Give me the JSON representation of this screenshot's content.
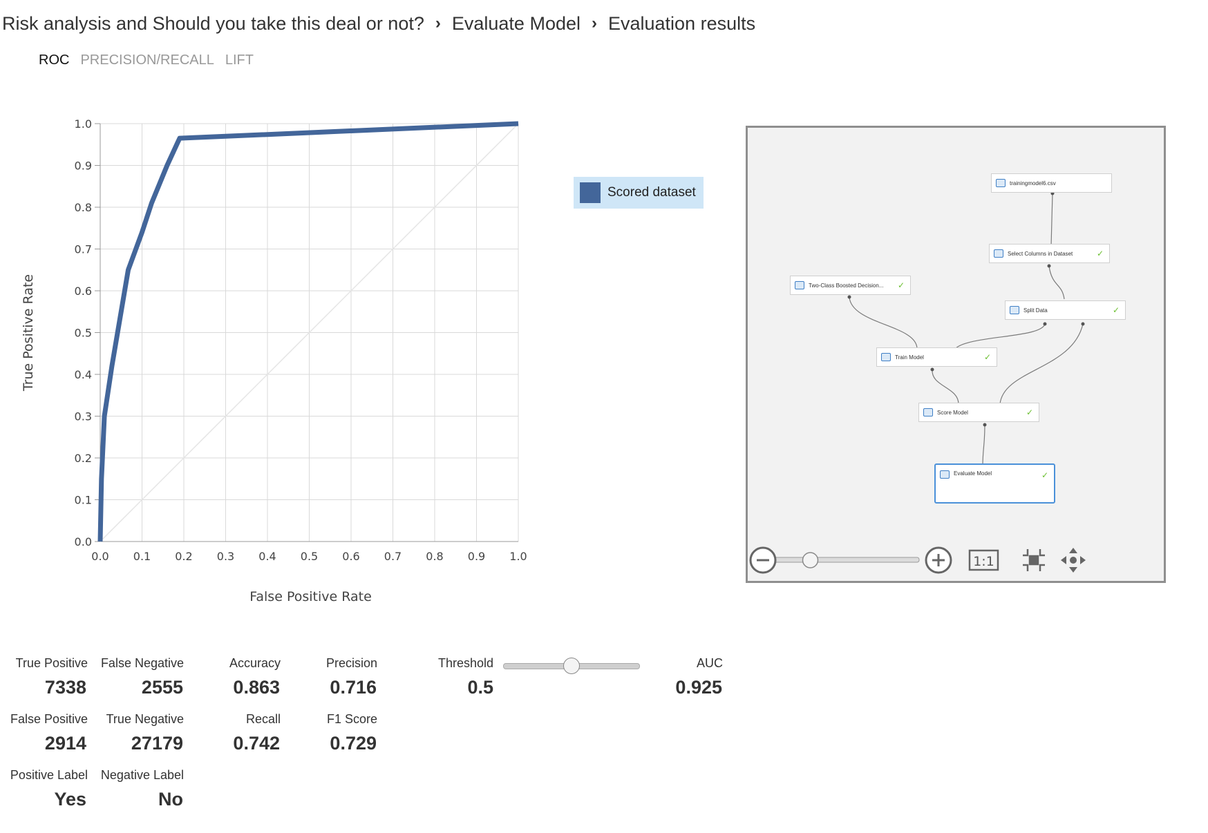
{
  "breadcrumb": {
    "items": [
      "Risk analysis and Should you take this deal or not?",
      "Evaluate Model",
      "Evaluation results"
    ],
    "separator": "›"
  },
  "tabs": [
    {
      "label": "ROC",
      "active": true
    },
    {
      "label": "PRECISION/RECALL",
      "active": false
    },
    {
      "label": "LIFT",
      "active": false
    }
  ],
  "chart_data": {
    "type": "line",
    "xlabel": "False Positive Rate",
    "ylabel": "True Positive Rate",
    "xlim": [
      0,
      1
    ],
    "ylim": [
      0,
      1
    ],
    "x_ticks": [
      "0.0",
      "0.1",
      "0.2",
      "0.3",
      "0.4",
      "0.5",
      "0.6",
      "0.7",
      "0.8",
      "0.9",
      "1.0"
    ],
    "y_ticks": [
      "0.0",
      "0.1",
      "0.2",
      "0.3",
      "0.4",
      "0.5",
      "0.6",
      "0.7",
      "0.8",
      "0.9",
      "1.0"
    ],
    "grid": true,
    "legend_position": "right",
    "series": [
      {
        "name": "Scored dataset",
        "color": "#43669a",
        "x": [
          0,
          0.003,
          0.01,
          0.028,
          0.067,
          0.1,
          0.123,
          0.16,
          0.19,
          1.0
        ],
        "y": [
          0,
          0.15,
          0.3,
          0.42,
          0.65,
          0.74,
          0.81,
          0.9,
          0.965,
          1.0
        ]
      }
    ],
    "reference_line": {
      "x": [
        0,
        1
      ],
      "y": [
        0,
        1
      ],
      "color": "#e5e5e5"
    }
  },
  "legend": {
    "label": "Scored dataset",
    "color": "#43669a"
  },
  "graph": {
    "nodes": [
      {
        "id": "training",
        "label": "trainingmodel6.csv",
        "check": false
      },
      {
        "id": "select",
        "label": "Select Columns in Dataset",
        "check": true
      },
      {
        "id": "boosted",
        "label": "Two-Class Boosted Decision...",
        "check": true
      },
      {
        "id": "split",
        "label": "Split Data",
        "check": true
      },
      {
        "id": "train",
        "label": "Train Model",
        "check": true
      },
      {
        "id": "score",
        "label": "Score Model",
        "check": true
      },
      {
        "id": "evaluate",
        "label": "Evaluate Model",
        "check": true
      }
    ],
    "check_glyph": "✓",
    "zoom": {
      "ratio_label": "1:1",
      "zoom_level": 0.25
    },
    "icons": [
      "zoom-out-icon",
      "zoom-in-icon",
      "actual-size-icon",
      "fit-to-screen-icon",
      "pan-icon"
    ]
  },
  "metrics": {
    "true_positive": {
      "label": "True Positive",
      "value": "7338"
    },
    "false_negative": {
      "label": "False Negative",
      "value": "2555"
    },
    "false_positive": {
      "label": "False Positive",
      "value": "2914"
    },
    "true_negative": {
      "label": "True Negative",
      "value": "27179"
    },
    "positive_label": {
      "label": "Positive Label",
      "value": "Yes"
    },
    "negative_label": {
      "label": "Negative Label",
      "value": "No"
    },
    "accuracy": {
      "label": "Accuracy",
      "value": "0.863"
    },
    "recall": {
      "label": "Recall",
      "value": "0.742"
    },
    "precision": {
      "label": "Precision",
      "value": "0.716"
    },
    "f1": {
      "label": "F1 Score",
      "value": "0.729"
    },
    "threshold": {
      "label": "Threshold",
      "value": "0.5",
      "slider_fraction": 0.5
    },
    "auc": {
      "label": "AUC",
      "value": "0.925"
    }
  }
}
